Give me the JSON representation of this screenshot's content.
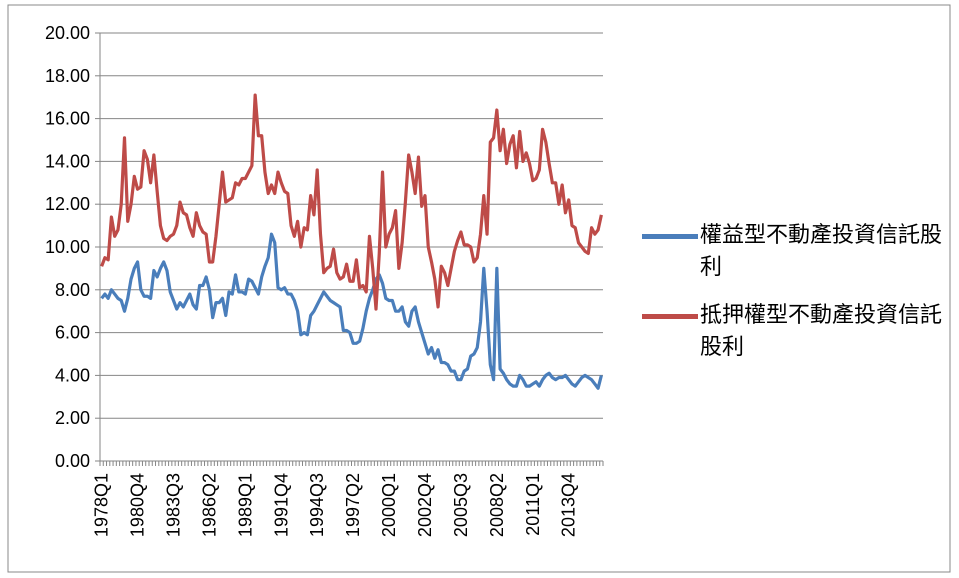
{
  "chart_data": {
    "type": "line",
    "categories": [
      "1978Q1",
      null,
      null,
      null,
      null,
      null,
      null,
      null,
      null,
      null,
      null,
      "1980Q4",
      null,
      null,
      null,
      null,
      null,
      null,
      null,
      null,
      null,
      null,
      "1983Q3",
      null,
      null,
      null,
      null,
      null,
      null,
      null,
      null,
      null,
      null,
      "1986Q2",
      null,
      null,
      null,
      null,
      null,
      null,
      null,
      null,
      null,
      null,
      "1989Q1",
      null,
      null,
      null,
      null,
      null,
      null,
      null,
      null,
      null,
      null,
      "1991Q4",
      null,
      null,
      null,
      null,
      null,
      null,
      null,
      null,
      null,
      null,
      "1994Q3",
      null,
      null,
      null,
      null,
      null,
      null,
      null,
      null,
      null,
      null,
      "1997Q2",
      null,
      null,
      null,
      null,
      null,
      null,
      null,
      null,
      null,
      null,
      "2000Q1",
      null,
      null,
      null,
      null,
      null,
      null,
      null,
      null,
      null,
      null,
      "2002Q4",
      null,
      null,
      null,
      null,
      null,
      null,
      null,
      null,
      null,
      null,
      "2005Q3",
      null,
      null,
      null,
      null,
      null,
      null,
      null,
      null,
      null,
      null,
      "2008Q2",
      null,
      null,
      null,
      null,
      null,
      null,
      null,
      null,
      null,
      null,
      "2011Q1",
      null,
      null,
      null,
      null,
      null,
      null,
      null,
      null,
      null,
      null,
      "2013Q4",
      null,
      null,
      null,
      null,
      null,
      null,
      null,
      null,
      null,
      null
    ],
    "series": [
      {
        "name": "權益型不動產投資信託股利",
        "color": "#4a7ebb",
        "values": [
          7.6,
          7.8,
          7.6,
          8.0,
          7.8,
          7.6,
          7.5,
          7.0,
          7.6,
          8.5,
          9.0,
          9.3,
          8.0,
          7.7,
          7.7,
          7.6,
          8.9,
          8.6,
          9.0,
          9.3,
          8.9,
          7.9,
          7.5,
          7.1,
          7.4,
          7.2,
          7.5,
          7.8,
          7.3,
          7.1,
          8.2,
          8.2,
          8.6,
          8.0,
          6.7,
          7.4,
          7.4,
          7.6,
          6.8,
          7.9,
          7.8,
          8.7,
          7.9,
          7.9,
          7.8,
          8.5,
          8.4,
          8.1,
          7.8,
          8.6,
          9.1,
          9.5,
          10.6,
          10.2,
          8.1,
          8.0,
          8.1,
          7.8,
          7.8,
          7.5,
          7.0,
          5.9,
          6.0,
          5.9,
          6.8,
          7.0,
          7.3,
          7.6,
          7.9,
          7.7,
          7.5,
          7.4,
          7.3,
          7.2,
          6.1,
          6.1,
          6.0,
          5.5,
          5.5,
          5.6,
          6.2,
          7.0,
          7.6,
          8.0,
          8.5,
          8.7,
          8.3,
          7.6,
          7.5,
          7.5,
          7.0,
          7.0,
          7.2,
          6.5,
          6.3,
          7.0,
          7.2,
          6.5,
          6.0,
          5.5,
          5.0,
          5.3,
          4.8,
          5.2,
          4.6,
          4.6,
          4.5,
          4.2,
          4.2,
          3.8,
          3.8,
          4.2,
          4.3,
          4.9,
          5.0,
          5.3,
          6.5,
          9.0,
          7.0,
          4.5,
          3.8,
          9.0,
          4.3,
          4.1,
          3.8,
          3.6,
          3.5,
          3.5,
          4.0,
          3.8,
          3.5,
          3.5,
          3.6,
          3.7,
          3.5,
          3.8,
          4.0,
          4.1,
          3.9,
          3.8,
          3.9,
          3.9,
          4.0,
          3.8,
          3.6,
          3.5,
          3.7,
          3.9,
          4.0,
          3.9,
          3.8,
          3.6,
          3.4,
          4.0
        ]
      },
      {
        "name": "抵押權型不動產投資信託股利",
        "color": "#be4b48",
        "values": [
          9.1,
          9.5,
          9.4,
          11.4,
          10.5,
          10.8,
          12.0,
          15.1,
          11.2,
          12.0,
          13.3,
          12.7,
          12.8,
          14.5,
          14.1,
          13.0,
          14.3,
          12.6,
          11.0,
          10.4,
          10.3,
          10.5,
          10.6,
          11.0,
          12.1,
          11.6,
          11.5,
          10.9,
          10.5,
          11.6,
          11.0,
          10.7,
          10.6,
          9.3,
          9.3,
          10.5,
          12.0,
          13.5,
          12.1,
          12.2,
          12.3,
          13.0,
          12.9,
          13.2,
          13.2,
          13.5,
          13.8,
          17.1,
          15.2,
          15.2,
          13.5,
          12.5,
          12.9,
          12.5,
          13.5,
          13.0,
          12.6,
          12.5,
          11.0,
          10.5,
          11.2,
          10.0,
          10.9,
          10.8,
          12.4,
          11.5,
          13.6,
          10.6,
          8.8,
          9.0,
          9.1,
          9.9,
          8.8,
          8.5,
          8.6,
          9.2,
          8.4,
          8.4,
          9.4,
          8.1,
          8.2,
          7.9,
          10.5,
          9.0,
          7.1,
          9.7,
          13.5,
          10.0,
          10.6,
          10.9,
          11.7,
          9.0,
          10.2,
          12.1,
          14.3,
          13.5,
          12.5,
          14.2,
          11.9,
          12.4,
          10.0,
          9.3,
          8.5,
          7.2,
          9.1,
          8.8,
          8.2,
          9.0,
          9.8,
          10.3,
          10.7,
          10.1,
          10.1,
          10.0,
          9.3,
          9.5,
          10.6,
          12.4,
          10.6,
          14.9,
          15.1,
          16.4,
          14.5,
          15.5,
          13.9,
          14.8,
          15.2,
          13.7,
          15.4,
          14.0,
          14.4,
          13.9,
          13.1,
          13.2,
          13.6,
          15.5,
          14.9,
          13.9,
          13.0,
          13.0,
          12.0,
          12.9,
          11.6,
          12.2,
          11.0,
          10.9,
          10.2,
          10.0,
          9.8,
          9.7,
          10.9,
          10.6,
          10.8,
          11.5
        ]
      }
    ],
    "ylim": [
      0,
      20
    ],
    "yticks": [
      {
        "value": 0,
        "label": "0.00"
      },
      {
        "value": 2,
        "label": "2.00"
      },
      {
        "value": 4,
        "label": "4.00"
      },
      {
        "value": 6,
        "label": "6.00"
      },
      {
        "value": 8,
        "label": "8.00"
      },
      {
        "value": 10,
        "label": "10.00"
      },
      {
        "value": 12,
        "label": "12.00"
      },
      {
        "value": 14,
        "label": "14.00"
      },
      {
        "value": 16,
        "label": "16.00"
      },
      {
        "value": 18,
        "label": "18.00"
      },
      {
        "value": 20,
        "label": "20.00"
      }
    ],
    "grid": true,
    "legend": "right"
  }
}
